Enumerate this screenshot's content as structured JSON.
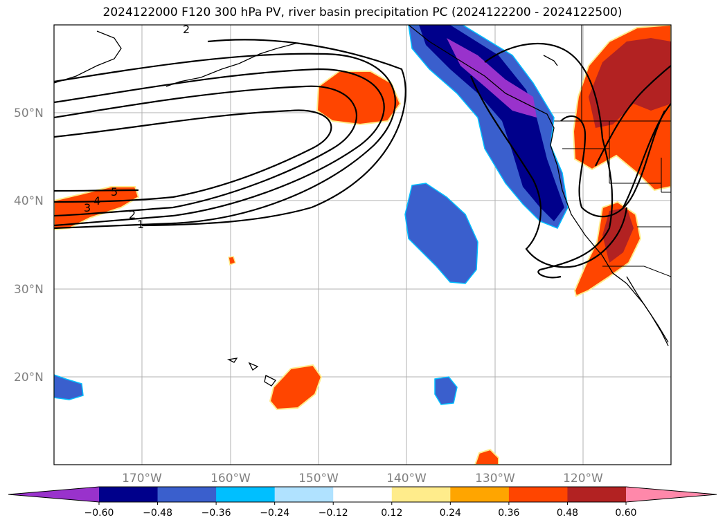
{
  "title": "2024122000 F120 300 hPa PV, river basin precipitation PC (2024122200 - 2024122500)",
  "lat_labels": [
    "50°N",
    "40°N",
    "30°N",
    "20°N"
  ],
  "lon_labels": [
    "170°W",
    "160°W",
    "150°W",
    "140°W",
    "130°W",
    "120°W"
  ],
  "colorbar": {
    "colors": [
      "#9932cc",
      "#00008b",
      "#3a5fcd",
      "#00bfff",
      "#b0e2ff",
      "#ffffff",
      "#ffec8b",
      "#ffa500",
      "#ff4500",
      "#b22222",
      "#ff88aa"
    ],
    "ticks": [
      "−0.60",
      "−0.48",
      "−0.36",
      "−0.24",
      "−0.12",
      "0.12",
      "0.24",
      "0.36",
      "0.48",
      "0.60"
    ]
  },
  "contour_labels": [
    "5",
    "4",
    "3",
    "2",
    "1",
    "2"
  ]
}
